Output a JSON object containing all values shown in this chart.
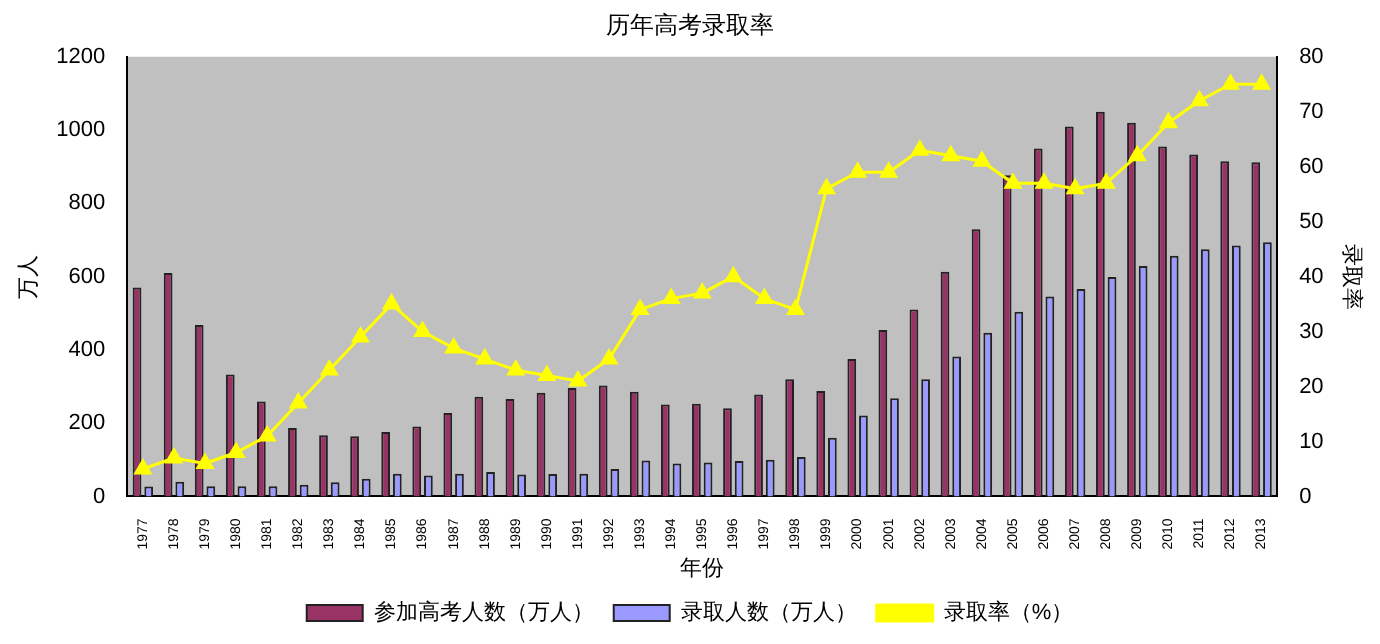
{
  "chart_data": {
    "type": "bar",
    "title": "历年高考录取率",
    "xlabel": "年份",
    "ylabel": "万人",
    "y2label": "录取率",
    "categories": [
      "1977",
      "1978",
      "1979",
      "1980",
      "1981",
      "1982",
      "1983",
      "1984",
      "1985",
      "1986",
      "1987",
      "1988",
      "1989",
      "1990",
      "1991",
      "1992",
      "1993",
      "1994",
      "1995",
      "1996",
      "1997",
      "1998",
      "1999",
      "2000",
      "2001",
      "2002",
      "2003",
      "2004",
      "2005",
      "2006",
      "2007",
      "2008",
      "2009",
      "2010",
      "2011",
      "2012",
      "2013"
    ],
    "series": [
      {
        "name": "参加高考人数（万人）",
        "color": "#993366",
        "values": [
          570,
          610,
          468,
          333,
          259,
          187,
          167,
          164,
          176,
          191,
          228,
          272,
          266,
          283,
          296,
          303,
          286,
          251,
          253,
          241,
          278,
          320,
          288,
          375,
          454,
          510,
          613,
          729,
          877,
          950,
          1010,
          1050,
          1020,
          955,
          933,
          915,
          912
        ]
      },
      {
        "name": "录取人数（万人）",
        "color": "#9999ff",
        "values": [
          27,
          40,
          28,
          28,
          28,
          32,
          39,
          48,
          62,
          57,
          62,
          67,
          60,
          61,
          62,
          75,
          98,
          90,
          93,
          97,
          100,
          108,
          160,
          221,
          268,
          320,
          382,
          447,
          504,
          546,
          566,
          599,
          629,
          657,
          675,
          685,
          694
        ]
      },
      {
        "name": "录取率（%）",
        "type": "line",
        "axis": "y2",
        "color": "#ffff00",
        "values": [
          5,
          7,
          6,
          8,
          11,
          17,
          23,
          29,
          35,
          30,
          27,
          25,
          23,
          22,
          21,
          25,
          34,
          36,
          37,
          40,
          36,
          34,
          56,
          59,
          59,
          63,
          62,
          61,
          57,
          57,
          56,
          57,
          62,
          68,
          72,
          75,
          75
        ]
      }
    ],
    "ylim": [
      0,
      1200
    ],
    "yticks": [
      0,
      200,
      400,
      600,
      800,
      1000,
      1200
    ],
    "y2lim": [
      0,
      80
    ],
    "y2ticks": [
      0,
      10,
      20,
      30,
      40,
      50,
      60,
      70,
      80
    ],
    "grid": false,
    "legend": "bottom",
    "marker": "triangle",
    "line_style": "solid"
  }
}
